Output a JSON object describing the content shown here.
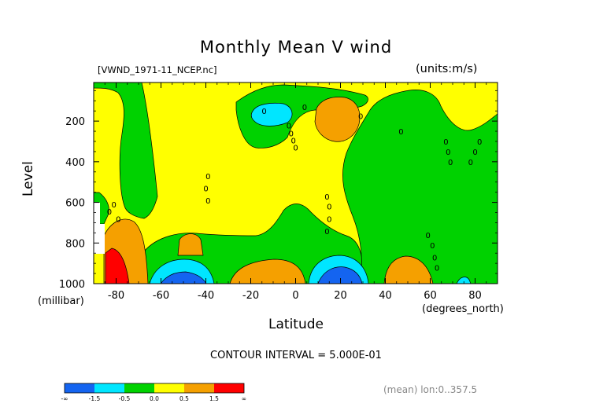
{
  "chart_data": {
    "type": "contour",
    "title": "Monthly Mean V wind",
    "file_label": "[VWND_1971-11_NCEP.nc]",
    "units_label": "(units:m/s)",
    "xlabel": "Latitude",
    "x_units": "(degrees_north)",
    "ylabel": "Level",
    "y_units": "(millibar)",
    "xlim": [
      -90,
      90
    ],
    "ylim": [
      1000,
      10
    ],
    "y_inverted": true,
    "x_ticks": [
      -80,
      -60,
      -40,
      -20,
      0,
      20,
      40,
      60,
      80
    ],
    "y_ticks": [
      200,
      400,
      600,
      800,
      1000
    ],
    "contour_interval_text": "CONTOUR INTERVAL = 5.000E-01",
    "meta_text": "(mean) lon:0..357.5",
    "contour_labels": [
      "0",
      "0",
      "0",
      "0",
      "0",
      "0",
      "0",
      "0",
      "0",
      "0",
      "0",
      "0",
      "0",
      "0",
      "0",
      "0",
      "0",
      "0",
      "0",
      "0",
      "0",
      "0",
      "0",
      "0",
      "0",
      "0",
      "0",
      "0"
    ],
    "colorbar": {
      "bins": [
        {
          "color": "#1464f0",
          "range": "< -1.5"
        },
        {
          "color": "#00e6ff",
          "range": "-1.5 to -0.5"
        },
        {
          "color": "#00d200",
          "range": "-0.5 to 0.0"
        },
        {
          "color": "#ffff00",
          "range": "0.0 to 0.5"
        },
        {
          "color": "#f5a000",
          "range": "0.5 to 1.5"
        },
        {
          "color": "#ff0000",
          "range": "> 1.5"
        }
      ],
      "labels": [
        "-∞",
        "-1.5",
        "-0.5",
        "0.0",
        "0.5",
        "1.5",
        "∞"
      ]
    },
    "features": [
      {
        "region": "lat -88..-65, 600-1000 mb",
        "band": "0.5 to 1.5, core > 1.5 near -85",
        "sign": "positive"
      },
      {
        "region": "lat -60..-40, 900-1000 mb",
        "band": "< -1.5 core near -50",
        "sign": "negative"
      },
      {
        "region": "lat -20..0, 900-1000 mb",
        "band": "0.5 to 1.5",
        "sign": "positive"
      },
      {
        "region": "lat 5..30, 880-1000 mb",
        "band": "< -1.5 core near 20",
        "sign": "negative"
      },
      {
        "region": "lat 45..60, 900-1000 mb",
        "band": "0.5 to 1.5",
        "sign": "positive"
      },
      {
        "region": "lat -15..-3, 100-250 mb",
        "band": "-1.5 to -0.5",
        "sign": "negative"
      },
      {
        "region": "lat 10..30, 80-300 mb",
        "band": "0.5 to 1.5",
        "sign": "positive"
      },
      {
        "region": "lat -80..-60, 50-650 mb",
        "band": "-0.5 to 0.0",
        "sign": "negative"
      },
      {
        "region": "lat 35..90, 50-900 mb",
        "band": "-0.5 to 0.0",
        "sign": "negative"
      }
    ]
  }
}
